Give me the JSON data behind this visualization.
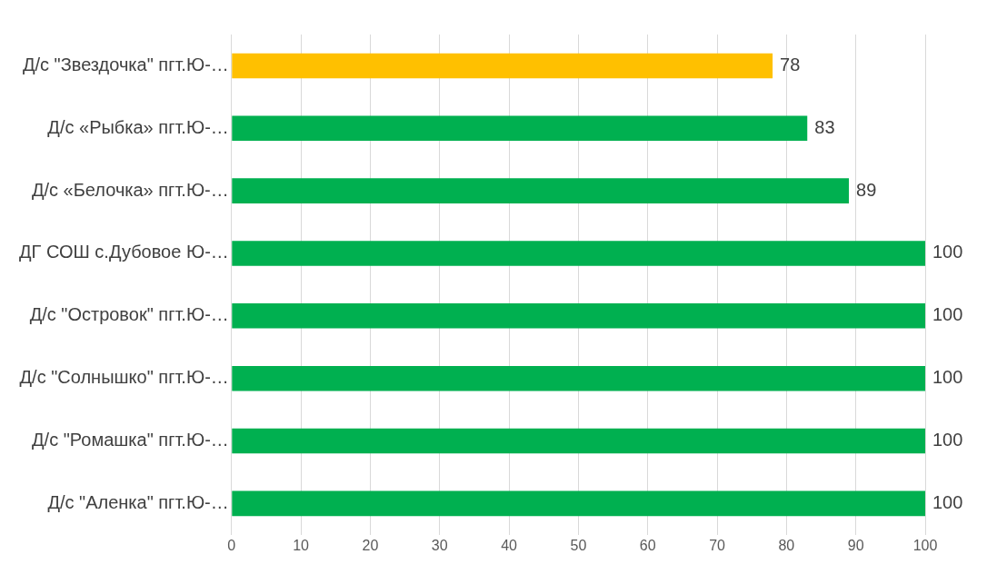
{
  "chart_data": {
    "type": "bar",
    "orientation": "horizontal",
    "categories": [
      "Д/с \"Звездочка\" пгт.Ю-…",
      "Д/с «Рыбка» пгт.Ю-…",
      "Д/с «Белочка» пгт.Ю-…",
      "ДГ СОШ с.Дубовое Ю-…",
      "Д/с \"Островок\" пгт.Ю-…",
      "Д/с \"Солнышко\" пгт.Ю-…",
      "Д/с \"Ромашка\" пгт.Ю-…",
      "Д/с \"Аленка\" пгт.Ю-…"
    ],
    "values": [
      78,
      83,
      89,
      100,
      100,
      100,
      100,
      100
    ],
    "colors": [
      "#ffc000",
      "#00b050",
      "#00b050",
      "#00b050",
      "#00b050",
      "#00b050",
      "#00b050",
      "#00b050"
    ],
    "xlim": [
      0,
      100
    ],
    "xticks": [
      0,
      10,
      20,
      30,
      40,
      50,
      60,
      70,
      80,
      90,
      100
    ],
    "grid": "x",
    "data_labels": true,
    "legend": false
  }
}
